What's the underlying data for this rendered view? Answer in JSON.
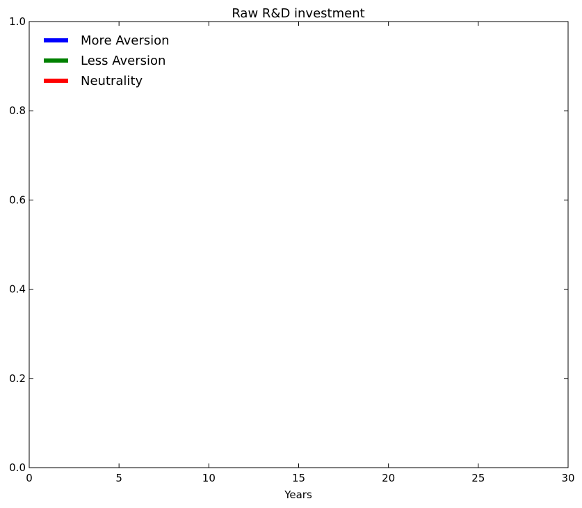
{
  "chart_data": {
    "type": "line",
    "title": "Raw R&D investment",
    "xlabel": "Years",
    "ylabel": "",
    "xlim": [
      0,
      30
    ],
    "ylim": [
      0.0,
      1.0
    ],
    "x_ticks": [
      "0",
      "5",
      "10",
      "15",
      "20",
      "25",
      "30"
    ],
    "y_ticks": [
      "0.0",
      "0.2",
      "0.4",
      "0.6",
      "0.8",
      "1.0"
    ],
    "grid": false,
    "legend_position": "top-left",
    "series": [
      {
        "name": "More Aversion",
        "color": "#0000ff",
        "x": [],
        "y": []
      },
      {
        "name": "Less Aversion",
        "color": "#008000",
        "x": [],
        "y": []
      },
      {
        "name": "Neutrality",
        "color": "#ff0000",
        "x": [],
        "y": []
      }
    ]
  }
}
